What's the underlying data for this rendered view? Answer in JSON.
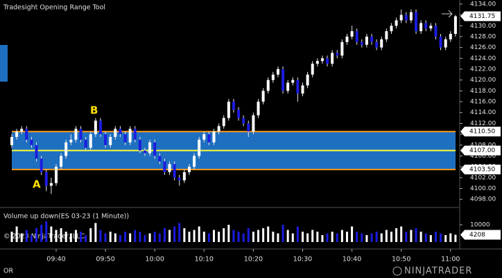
{
  "chart_data": {
    "type": "candlestick",
    "title": "Tradesight Opening Range Tool",
    "volume_title": "Volume up down(ES 03-23 (1 Minute))",
    "copyright": "© 2023 NinjaTrader, LLC",
    "footer_label": "OR",
    "brand": "NINJATRADER",
    "annotations": [
      "A",
      "B"
    ],
    "up_color": "#ffffff",
    "down_color": "#1c1ce0",
    "x": [
      "09:31",
      "09:32",
      "09:33",
      "09:34",
      "09:35",
      "09:36",
      "09:37",
      "09:38",
      "09:39",
      "09:40",
      "09:41",
      "09:42",
      "09:43",
      "09:44",
      "09:45",
      "09:46",
      "09:47",
      "09:48",
      "09:49",
      "09:50",
      "09:51",
      "09:52",
      "09:53",
      "09:54",
      "09:55",
      "09:56",
      "09:57",
      "09:58",
      "09:59",
      "10:00",
      "10:01",
      "10:02",
      "10:03",
      "10:04",
      "10:05",
      "10:06",
      "10:07",
      "10:08",
      "10:09",
      "10:10",
      "10:11",
      "10:12",
      "10:13",
      "10:14",
      "10:15",
      "10:16",
      "10:17",
      "10:18",
      "10:19",
      "10:20",
      "10:21",
      "10:22",
      "10:23",
      "10:24",
      "10:25",
      "10:26",
      "10:27",
      "10:28",
      "10:29",
      "10:30",
      "10:31",
      "10:32",
      "10:33",
      "10:34",
      "10:35",
      "10:36",
      "10:37",
      "10:38",
      "10:39",
      "10:40",
      "10:41",
      "10:42",
      "10:43",
      "10:44",
      "10:45",
      "10:46",
      "10:47",
      "10:48",
      "10:49",
      "10:50",
      "10:51",
      "10:52",
      "10:53",
      "10:54",
      "10:55",
      "10:56",
      "10:57",
      "10:58",
      "10:59",
      "11:00",
      "11:01"
    ],
    "open": [
      4108,
      4109.5,
      4110.5,
      4111,
      4109,
      4108,
      4105.5,
      4103,
      4100.5,
      4101,
      4104,
      4106,
      4108.5,
      4109,
      4111,
      4109,
      4107.5,
      4110,
      4112.5,
      4110,
      4108,
      4109.5,
      4111,
      4110,
      4108.5,
      4111,
      4109,
      4107,
      4106.5,
      4108.5,
      4106,
      4105,
      4103,
      4104.5,
      4102,
      4101.5,
      4103,
      4104,
      4106,
      4109,
      4110,
      4108.5,
      4110.5,
      4111.5,
      4113,
      4116,
      4114.5,
      4113,
      4112,
      4110.5,
      4113.5,
      4116,
      4118,
      4120,
      4121,
      4122,
      4118,
      4119.5,
      4120,
      4117.5,
      4119,
      4121,
      4123,
      4123.5,
      4124,
      4123,
      4125,
      4124.5,
      4127,
      4128,
      4129,
      4127,
      4126.5,
      4128,
      4127,
      4126,
      4127.5,
      4129,
      4130,
      4131,
      4132,
      4131,
      4132.5,
      4129,
      4130.5,
      4129.5,
      4130,
      4128,
      4126,
      4127.5,
      4128.5
    ],
    "high": [
      4110,
      4111,
      4111.5,
      4111.5,
      4109.5,
      4108.5,
      4106,
      4103.5,
      4102,
      4104.5,
      4106.5,
      4109,
      4110,
      4111.5,
      4111.5,
      4109.5,
      4110.5,
      4113,
      4113,
      4110.5,
      4110,
      4111.5,
      4111.5,
      4110.5,
      4111.5,
      4111.5,
      4109.5,
      4107.5,
      4109,
      4109,
      4106.5,
      4105.5,
      4105,
      4105,
      4102.5,
      4103.5,
      4104.5,
      4106.5,
      4109.5,
      4110.5,
      4110.5,
      4111,
      4112,
      4113.5,
      4116.5,
      4116.5,
      4115,
      4113.5,
      4112.5,
      4114,
      4116.5,
      4118.5,
      4120.5,
      4121.5,
      4122.5,
      4122.5,
      4120,
      4120.5,
      4120.5,
      4119.5,
      4121.5,
      4123.5,
      4124,
      4124.5,
      4124.5,
      4125.5,
      4125.5,
      4127.5,
      4128.5,
      4130,
      4129.5,
      4127.5,
      4128.5,
      4128.5,
      4127.5,
      4128,
      4129.5,
      4130.5,
      4131.5,
      4133,
      4132.5,
      4133,
      4133,
      4131,
      4131,
      4130.5,
      4130.5,
      4128.5,
      4128,
      4129,
      4132
    ],
    "low": [
      4107.5,
      4109,
      4110,
      4108.5,
      4107.5,
      4105,
      4102.5,
      4099.5,
      4099,
      4100.5,
      4103.5,
      4105.5,
      4108,
      4108.5,
      4108.5,
      4107,
      4107,
      4109.5,
      4109.5,
      4107.5,
      4107.5,
      4109,
      4109.5,
      4108,
      4108,
      4108.5,
      4106.5,
      4106,
      4106,
      4105.5,
      4104.5,
      4102.5,
      4102.5,
      4101.5,
      4100.5,
      4101,
      4102.5,
      4103.5,
      4105.5,
      4108.5,
      4108,
      4108,
      4110,
      4111,
      4112.5,
      4114,
      4112.5,
      4111.5,
      4109.5,
      4110,
      4113,
      4115.5,
      4117.5,
      4119.5,
      4120.5,
      4117.5,
      4117.5,
      4119,
      4116,
      4117,
      4118.5,
      4120.5,
      4122.5,
      4123,
      4122.5,
      4122.5,
      4124,
      4124,
      4126.5,
      4127.5,
      4126.5,
      4126,
      4126,
      4126.5,
      4125.5,
      4125.5,
      4127,
      4128.5,
      4129.5,
      4130.5,
      4130.5,
      4130.5,
      4128.5,
      4128.5,
      4129,
      4129,
      4127.5,
      4125.5,
      4125.5,
      4127,
      4128
    ],
    "close": [
      4109.5,
      4110.5,
      4111,
      4109,
      4108,
      4105.5,
      4103,
      4100.5,
      4101,
      4104,
      4106,
      4108.5,
      4109,
      4111,
      4109,
      4107.5,
      4110,
      4112.5,
      4110,
      4108,
      4109.5,
      4111,
      4110,
      4108.5,
      4111,
      4109,
      4107,
      4106.5,
      4108.5,
      4106,
      4105,
      4103,
      4104.5,
      4102,
      4101.5,
      4103,
      4104,
      4106,
      4109,
      4110,
      4108.5,
      4110.5,
      4111.5,
      4113,
      4116,
      4114.5,
      4113,
      4112,
      4110.5,
      4113.5,
      4116,
      4118,
      4120,
      4121,
      4122,
      4118,
      4119.5,
      4120,
      4117.5,
      4119,
      4121,
      4123,
      4123.5,
      4124,
      4123,
      4125,
      4124.5,
      4127,
      4128,
      4129,
      4127,
      4126.5,
      4128,
      4127,
      4126,
      4127.5,
      4129,
      4130,
      4131,
      4132,
      4131,
      4132.5,
      4129,
      4130.5,
      4129.5,
      4130,
      4128,
      4126,
      4127.5,
      4128.5,
      4131.75
    ],
    "volume": [
      6000,
      9000,
      5000,
      7000,
      4000,
      8000,
      10000,
      12000,
      9000,
      7000,
      8000,
      6000,
      5000,
      7000,
      6000,
      4000,
      8000,
      11000,
      7000,
      5000,
      6000,
      5000,
      4000,
      6000,
      5000,
      7000,
      6000,
      4000,
      5000,
      6000,
      5000,
      8000,
      7000,
      9000,
      11000,
      8000,
      6000,
      7000,
      9000,
      6000,
      5000,
      7000,
      6000,
      8000,
      10000,
      7000,
      6000,
      5000,
      8000,
      6000,
      7000,
      8000,
      9000,
      6000,
      5000,
      10000,
      7000,
      5000,
      9000,
      6000,
      5000,
      7000,
      6000,
      4000,
      5000,
      6000,
      5000,
      7000,
      6000,
      9000,
      6000,
      5000,
      4000,
      5000,
      6000,
      5000,
      7000,
      6000,
      8000,
      9000,
      6000,
      7000,
      8000,
      6000,
      5000,
      4000,
      6000,
      5000,
      4000,
      5000,
      4208
    ],
    "xticks": [
      "09:40",
      "09:50",
      "10:00",
      "10:10",
      "10:20",
      "10:30",
      "10:40",
      "10:50",
      "11:00"
    ],
    "ylim": [
      4096.5,
      4134.75
    ],
    "yticks": [
      {
        "value": 4098,
        "label": "4098.00"
      },
      {
        "value": 4100,
        "label": "4100.00"
      },
      {
        "value": 4102,
        "label": "4102.00"
      },
      {
        "value": 4104,
        "label": "4104.00"
      },
      {
        "value": 4106,
        "label": "4106.00"
      },
      {
        "value": 4108,
        "label": "4108.00"
      },
      {
        "value": 4110,
        "label": "4110.00"
      },
      {
        "value": 4112,
        "label": "4112.00"
      },
      {
        "value": 4114,
        "label": "4114.00"
      },
      {
        "value": 4116,
        "label": "4116.00"
      },
      {
        "value": 4118,
        "label": "4118.00"
      },
      {
        "value": 4120,
        "label": "4120.00"
      },
      {
        "value": 4122,
        "label": "4122.00"
      },
      {
        "value": 4124,
        "label": "4124.00"
      },
      {
        "value": 4126,
        "label": "4126.00"
      },
      {
        "value": 4128,
        "label": "4128.00"
      },
      {
        "value": 4130,
        "label": "4130.00"
      },
      {
        "value": 4132,
        "label": "4132.00"
      },
      {
        "value": 4134,
        "label": "4134.00"
      }
    ],
    "last_price": 4131.75,
    "opening_range": {
      "high": {
        "value": 4110.5,
        "label": "4110.50"
      },
      "mid": {
        "value": 4107,
        "label": "4107.00"
      },
      "low": {
        "value": 4103.5,
        "label": "4103.50"
      },
      "band_color": "#1f6fc0",
      "edge_color": "#ff9a1a",
      "mid_color": "#ffff33"
    },
    "volume_ylim": [
      0,
      20000
    ],
    "volume_yticks": [
      10000
    ],
    "last_volume": 4208
  }
}
